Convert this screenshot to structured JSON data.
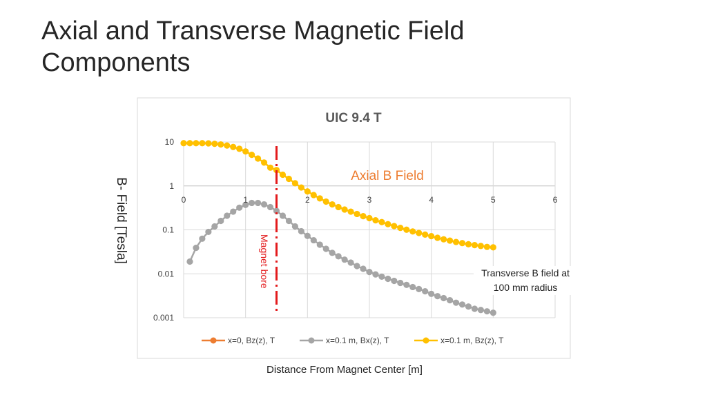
{
  "slide": {
    "title": "Axial and Transverse Magnetic Field Components",
    "y_axis_title": "B- Field [Tesla]",
    "x_axis_title": "Distance From Magnet Center [m]",
    "annotation_transverse": "Transverse B field at 100 mm radius"
  },
  "chart_data": {
    "type": "line",
    "title": "UIC 9.4 T",
    "xlabel": "Distance From Magnet Center [m]",
    "ylabel": "B- Field [Tesla]",
    "xlim": [
      0,
      6
    ],
    "ylim": [
      0.001,
      10
    ],
    "y_scale": "log",
    "x_ticks": [
      "0",
      "1",
      "2",
      "3",
      "4",
      "5",
      "6"
    ],
    "y_ticks": [
      "10",
      "1",
      "0.1",
      "0.01",
      "0.001"
    ],
    "grid": true,
    "legend_position": "bottom",
    "series": [
      {
        "name": "x=0, Bz(z), T",
        "color": "#ed7d31",
        "x": [],
        "y": []
      },
      {
        "name": "x=0.1 m, Bx(z), T",
        "color": "#a5a5a5",
        "x": [
          0.1,
          0.2,
          0.3,
          0.4,
          0.5,
          0.6,
          0.7,
          0.8,
          0.9,
          1.0,
          1.1,
          1.2,
          1.3,
          1.4,
          1.5,
          1.6,
          1.7,
          1.8,
          1.9,
          2.0,
          2.1,
          2.2,
          2.3,
          2.4,
          2.5,
          2.6,
          2.7,
          2.8,
          2.9,
          3.0,
          3.1,
          3.2,
          3.3,
          3.4,
          3.5,
          3.6,
          3.7,
          3.8,
          3.9,
          4.0,
          4.1,
          4.2,
          4.3,
          4.4,
          4.5,
          4.6,
          4.7,
          4.8,
          4.9,
          5.0
        ],
        "y": [
          0.019,
          0.039,
          0.063,
          0.09,
          0.12,
          0.16,
          0.21,
          0.26,
          0.32,
          0.37,
          0.41,
          0.41,
          0.38,
          0.33,
          0.27,
          0.21,
          0.16,
          0.12,
          0.093,
          0.073,
          0.058,
          0.046,
          0.037,
          0.03,
          0.025,
          0.021,
          0.018,
          0.015,
          0.013,
          0.011,
          0.0097,
          0.0086,
          0.0077,
          0.0069,
          0.0062,
          0.0056,
          0.005,
          0.0045,
          0.004,
          0.0035,
          0.0031,
          0.0028,
          0.0025,
          0.0022,
          0.002,
          0.0018,
          0.0016,
          0.0015,
          0.0014,
          0.0013
        ]
      },
      {
        "name": "x=0.1 m, Bz(z), T",
        "color": "#ffc000",
        "x": [
          0.0,
          0.1,
          0.2,
          0.3,
          0.4,
          0.5,
          0.6,
          0.7,
          0.8,
          0.9,
          1.0,
          1.1,
          1.2,
          1.3,
          1.4,
          1.5,
          1.6,
          1.7,
          1.8,
          1.9,
          2.0,
          2.1,
          2.2,
          2.3,
          2.4,
          2.5,
          2.6,
          2.7,
          2.8,
          2.9,
          3.0,
          3.1,
          3.2,
          3.3,
          3.4,
          3.5,
          3.6,
          3.7,
          3.8,
          3.9,
          4.0,
          4.1,
          4.2,
          4.3,
          4.4,
          4.5,
          4.6,
          4.7,
          4.8,
          4.9,
          5.0
        ],
        "y": [
          9.4,
          9.4,
          9.4,
          9.4,
          9.3,
          9.1,
          8.8,
          8.3,
          7.7,
          7.0,
          6.1,
          5.1,
          4.2,
          3.4,
          2.6,
          2.3,
          1.8,
          1.45,
          1.15,
          0.92,
          0.75,
          0.62,
          0.52,
          0.44,
          0.38,
          0.33,
          0.29,
          0.26,
          0.23,
          0.205,
          0.185,
          0.165,
          0.15,
          0.135,
          0.122,
          0.111,
          0.101,
          0.092,
          0.085,
          0.078,
          0.072,
          0.066,
          0.061,
          0.057,
          0.053,
          0.05,
          0.047,
          0.045,
          0.043,
          0.041,
          0.04
        ]
      }
    ],
    "annotations": [
      {
        "text": "Axial B Field",
        "color": "#ed7d31"
      },
      {
        "text": "Magnet bore",
        "color": "#e31a1c",
        "x": 1.5
      }
    ]
  }
}
